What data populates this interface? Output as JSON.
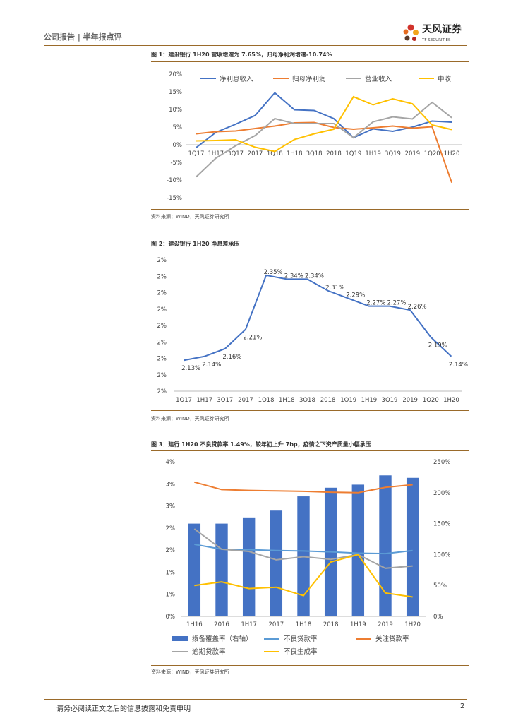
{
  "header": {
    "left_label": "公司报告 | 半年报点评",
    "brand_cn": "天风证券",
    "brand_en": "TF SECURITIES"
  },
  "footer": {
    "disclaimer": "请务必阅读正文之后的信息披露和免责申明",
    "page_no": "2"
  },
  "figures": [
    {
      "title": "图 1：建设银行 1H20 营收增速为 7.65%，归母净利润增速-10.74%",
      "source": "资料来源：WIND，天风证券研究所"
    },
    {
      "title": "图 2：建设银行 1H20 净息差承压",
      "source": "资料来源：WIND，天风证券研究所"
    },
    {
      "title": "图 3：建行 1H20 不良贷款率 1.49%，较年初上升 7bp，疫情之下资产质量小幅承压",
      "source": "资料来源：WIND，天风证券研究所"
    }
  ],
  "colors": {
    "blue": "#4472C4",
    "orange": "#ED7D31",
    "gray": "#A5A5A5",
    "yellow": "#FFC000",
    "lightblue": "#5B9BD5"
  },
  "chart_data": [
    {
      "type": "line",
      "title": "图 1：建设银行 1H20 营收增速为 7.65%，归母净利润增速-10.74%",
      "categories": [
        "1Q17",
        "1H17",
        "3Q17",
        "2017",
        "1Q18",
        "1H18",
        "3Q18",
        "2018",
        "1Q19",
        "1H19",
        "3Q19",
        "2019",
        "1Q20",
        "1H20"
      ],
      "ylim": [
        -15,
        20
      ],
      "yticks": [
        "20%",
        "15%",
        "10%",
        "5%",
        "0%",
        "-5%",
        "-10%",
        "-15%"
      ],
      "series": [
        {
          "name": "净利息收入",
          "color": "#4472C4",
          "values": [
            -0.8,
            3.5,
            5.8,
            8.3,
            14.7,
            9.9,
            9.7,
            7.4,
            2.0,
            4.5,
            3.8,
            5.0,
            6.7,
            6.4
          ]
        },
        {
          "name": "归母净利润",
          "color": "#ED7D31",
          "values": [
            3.1,
            3.7,
            3.9,
            4.6,
            5.3,
            6.2,
            6.3,
            4.9,
            4.4,
            4.8,
            5.3,
            4.7,
            5.1,
            -10.74
          ]
        },
        {
          "name": "营业收入",
          "color": "#A5A5A5",
          "values": [
            -9.1,
            -3.8,
            -0.3,
            2.6,
            7.4,
            6.0,
            6.0,
            6.0,
            2.0,
            6.5,
            7.9,
            7.3,
            12.0,
            7.65
          ]
        },
        {
          "name": "中收",
          "color": "#FFC000",
          "values": [
            1.1,
            1.2,
            1.4,
            -0.7,
            -1.9,
            1.5,
            3.1,
            4.4,
            13.6,
            11.3,
            13.0,
            11.6,
            5.6,
            4.3
          ]
        }
      ]
    },
    {
      "type": "line",
      "title": "图 2：建设银行 1H20 净息差承压",
      "categories": [
        "1Q17",
        "1H17",
        "3Q17",
        "2017",
        "1Q18",
        "1H18",
        "3Q18",
        "2018",
        "1Q19",
        "1H19",
        "3Q19",
        "2019",
        "1Q20",
        "1H20"
      ],
      "yticks": [
        "2%",
        "2%",
        "2%",
        "2%",
        "2%",
        "2%",
        "2%",
        "2%",
        "2%"
      ],
      "ylim": [
        2.05,
        2.39
      ],
      "series": [
        {
          "name": "净息差",
          "color": "#4472C4",
          "values": [
            2.13,
            2.14,
            2.16,
            2.21,
            2.35,
            2.34,
            2.34,
            2.31,
            2.29,
            2.27,
            2.27,
            2.26,
            2.19,
            2.14
          ]
        }
      ],
      "data_labels": [
        "2.13%",
        "2.14%",
        "2.16%",
        "2.21%",
        "2.35%",
        "2.34%",
        "2.34%",
        "2.31%",
        "2.29%",
        "2.27%",
        "2.27%",
        "2.26%",
        "2.19%",
        "2.14%"
      ]
    },
    {
      "type": "bar",
      "title": "图 3：建行 1H20 不良贷款率 1.49%，较年初上升 7bp，疫情之下资产质量小幅承压",
      "categories": [
        "1H16",
        "2016",
        "1H17",
        "2017",
        "1H18",
        "2018",
        "1H19",
        "2019",
        "1H20"
      ],
      "yticks_left": [
        "4%",
        "3%",
        "3%",
        "2%",
        "2%",
        "1%",
        "1%",
        "0%"
      ],
      "yticks_right": [
        "250%",
        "200%",
        "150%",
        "100%",
        "50%",
        "0%"
      ],
      "ylim_left": [
        0,
        3.5
      ],
      "ylim_right": [
        0,
        250
      ],
      "series": [
        {
          "name": "拨备覆盖率（右轴）",
          "type": "bar",
          "axis": "right",
          "color": "#4472C4",
          "values": [
            150,
            150,
            160,
            171,
            194,
            208,
            213,
            228,
            224
          ]
        },
        {
          "name": "不良贷款率",
          "type": "line",
          "axis": "left",
          "color": "#5B9BD5",
          "values": [
            1.63,
            1.52,
            1.51,
            1.49,
            1.48,
            1.46,
            1.43,
            1.42,
            1.49
          ]
        },
        {
          "name": "关注贷款率",
          "type": "line",
          "axis": "left",
          "color": "#ED7D31",
          "values": [
            3.04,
            2.87,
            2.85,
            2.84,
            2.83,
            2.81,
            2.8,
            2.92,
            2.98
          ]
        },
        {
          "name": "逾期贷款率",
          "type": "line",
          "axis": "left",
          "color": "#A5A5A5",
          "values": [
            1.98,
            1.52,
            1.47,
            1.28,
            1.35,
            1.29,
            1.4,
            1.09,
            1.14
          ]
        },
        {
          "name": "不良生成率",
          "type": "line",
          "axis": "left",
          "color": "#FFC000",
          "values": [
            0.7,
            0.78,
            0.63,
            0.66,
            0.47,
            1.23,
            1.4,
            0.53,
            0.44
          ]
        }
      ]
    }
  ]
}
